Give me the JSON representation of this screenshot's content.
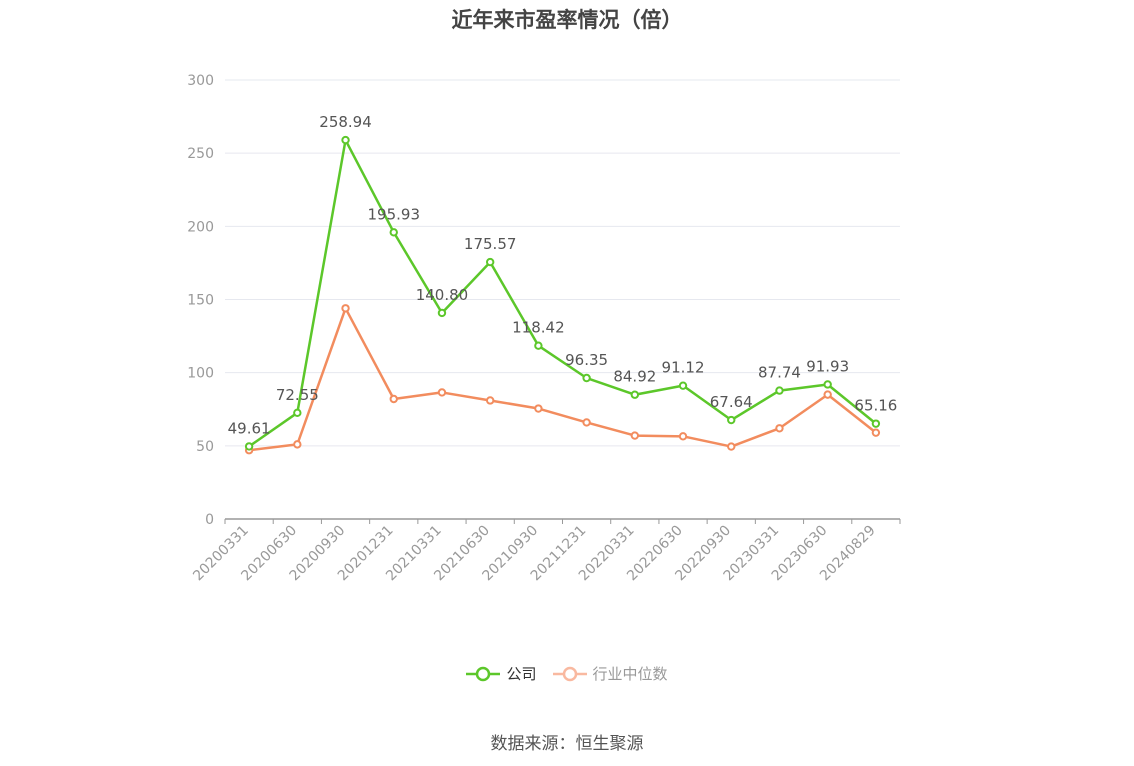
{
  "title": "近年来市盈率情况（倍）",
  "source": "数据来源：恒生聚源",
  "legend": {
    "company_label": "公司",
    "industry_label": "行业中位数"
  },
  "colors": {
    "company": "#5cc72a",
    "industry": "#f28c5e",
    "industry_legend": "#f9b9a0",
    "grid": "#e6e8ef",
    "axis": "#999999",
    "tick_text": "#999999",
    "label_text": "#555555"
  },
  "chart_data": {
    "type": "line",
    "title": "近年来市盈率情况（倍）",
    "categories": [
      "20200331",
      "20200630",
      "20200930",
      "20201231",
      "20210331",
      "20210630",
      "20210930",
      "20211231",
      "20220331",
      "20220630",
      "20220930",
      "20230331",
      "20230630",
      "20240829"
    ],
    "series": [
      {
        "name": "公司",
        "values": [
          49.61,
          72.55,
          258.94,
          195.93,
          140.8,
          175.57,
          118.42,
          96.35,
          84.92,
          91.12,
          67.64,
          87.74,
          91.93,
          65.16
        ],
        "labels": [
          "49.61",
          "72.55",
          "258.94",
          "195.93",
          "140.80",
          "175.57",
          "118.42",
          "96.35",
          "84.92",
          "91.12",
          "67.64",
          "87.74",
          "91.93",
          "65.16"
        ]
      },
      {
        "name": "行业中位数",
        "values": [
          47,
          51,
          144,
          82,
          86.5,
          81,
          75.5,
          66,
          57,
          56.5,
          49.5,
          62,
          85,
          59
        ]
      }
    ],
    "ylim": [
      0,
      300
    ],
    "yticks": [
      0,
      50,
      100,
      150,
      200,
      250,
      300
    ],
    "grid": true,
    "legend_position": "bottom"
  }
}
